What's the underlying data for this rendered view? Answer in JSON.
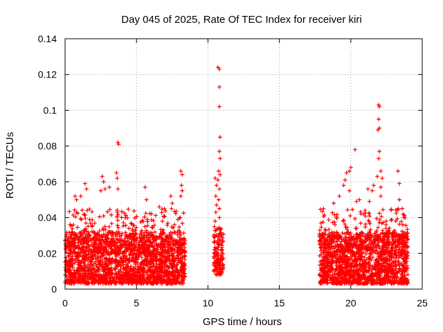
{
  "chart_data": {
    "type": "scatter",
    "title": "Day 045 of 2025, Rate Of TEC Index for receiver kiri",
    "xlabel": "GPS time / hours",
    "ylabel": "ROTI / TECUs",
    "xlim": [
      0,
      25
    ],
    "ylim": [
      0,
      0.14
    ],
    "x_ticks": [
      0,
      5,
      10,
      15,
      20,
      25
    ],
    "y_ticks": [
      0,
      0.02,
      0.04,
      0.06,
      0.08,
      0.1,
      0.12,
      0.14
    ],
    "x_tick_labels": [
      "0",
      "5",
      "10",
      "15",
      "20",
      "25"
    ],
    "y_tick_labels": [
      "0",
      "0.02",
      "0.04",
      "0.06",
      "0.08",
      "0.1",
      "0.12",
      "0.14"
    ],
    "grid": true,
    "marker": "+",
    "marker_color": "#ff0000",
    "series": [
      {
        "name": "ROTI",
        "clusters": [
          {
            "x_range": [
              0.0,
              8.4
            ],
            "y_range": [
              0.003,
              0.032
            ],
            "count": 1900
          },
          {
            "x_range": [
              0.3,
              8.4
            ],
            "y_range": [
              0.02,
              0.045
            ],
            "count": 260
          },
          {
            "x_range": [
              10.4,
              11.1
            ],
            "y_range": [
              0.008,
              0.035
            ],
            "count": 140
          },
          {
            "x_range": [
              17.8,
              24.0
            ],
            "y_range": [
              0.003,
              0.032
            ],
            "count": 1500
          },
          {
            "x_range": [
              17.8,
              24.0
            ],
            "y_range": [
              0.02,
              0.045
            ],
            "count": 200
          }
        ],
        "outliers": [
          {
            "x": 3.7,
            "y": 0.082
          },
          {
            "x": 3.75,
            "y": 0.081
          },
          {
            "x": 3.6,
            "y": 0.065
          },
          {
            "x": 3.65,
            "y": 0.062
          },
          {
            "x": 3.7,
            "y": 0.056
          },
          {
            "x": 2.6,
            "y": 0.063
          },
          {
            "x": 2.7,
            "y": 0.06
          },
          {
            "x": 2.8,
            "y": 0.056
          },
          {
            "x": 2.5,
            "y": 0.055
          },
          {
            "x": 1.4,
            "y": 0.059
          },
          {
            "x": 1.5,
            "y": 0.056
          },
          {
            "x": 0.7,
            "y": 0.052
          },
          {
            "x": 0.8,
            "y": 0.05
          },
          {
            "x": 1.1,
            "y": 0.052
          },
          {
            "x": 3.1,
            "y": 0.057
          },
          {
            "x": 5.6,
            "y": 0.057
          },
          {
            "x": 5.7,
            "y": 0.05
          },
          {
            "x": 7.4,
            "y": 0.052
          },
          {
            "x": 7.5,
            "y": 0.048
          },
          {
            "x": 6.6,
            "y": 0.046
          },
          {
            "x": 8.1,
            "y": 0.066
          },
          {
            "x": 8.2,
            "y": 0.064
          },
          {
            "x": 8.15,
            "y": 0.058
          },
          {
            "x": 8.2,
            "y": 0.055
          },
          {
            "x": 8.1,
            "y": 0.052
          },
          {
            "x": 10.7,
            "y": 0.124
          },
          {
            "x": 10.8,
            "y": 0.123
          },
          {
            "x": 10.8,
            "y": 0.113
          },
          {
            "x": 10.8,
            "y": 0.102
          },
          {
            "x": 10.85,
            "y": 0.085
          },
          {
            "x": 10.8,
            "y": 0.077
          },
          {
            "x": 10.85,
            "y": 0.073
          },
          {
            "x": 10.75,
            "y": 0.066
          },
          {
            "x": 10.85,
            "y": 0.064
          },
          {
            "x": 10.7,
            "y": 0.061
          },
          {
            "x": 10.5,
            "y": 0.062
          },
          {
            "x": 10.6,
            "y": 0.058
          },
          {
            "x": 10.8,
            "y": 0.056
          },
          {
            "x": 10.55,
            "y": 0.052
          },
          {
            "x": 10.75,
            "y": 0.05
          },
          {
            "x": 10.6,
            "y": 0.047
          },
          {
            "x": 10.8,
            "y": 0.045
          },
          {
            "x": 10.55,
            "y": 0.043
          },
          {
            "x": 10.8,
            "y": 0.04
          },
          {
            "x": 10.5,
            "y": 0.038
          },
          {
            "x": 20.0,
            "y": 0.068
          },
          {
            "x": 19.9,
            "y": 0.066
          },
          {
            "x": 19.7,
            "y": 0.065
          },
          {
            "x": 19.6,
            "y": 0.061
          },
          {
            "x": 19.5,
            "y": 0.058
          },
          {
            "x": 19.9,
            "y": 0.055
          },
          {
            "x": 19.2,
            "y": 0.052
          },
          {
            "x": 18.8,
            "y": 0.048
          },
          {
            "x": 20.3,
            "y": 0.078
          },
          {
            "x": 20.6,
            "y": 0.05
          },
          {
            "x": 20.4,
            "y": 0.049
          },
          {
            "x": 21.95,
            "y": 0.103
          },
          {
            "x": 22.0,
            "y": 0.102
          },
          {
            "x": 21.95,
            "y": 0.095
          },
          {
            "x": 22.0,
            "y": 0.09
          },
          {
            "x": 21.9,
            "y": 0.089
          },
          {
            "x": 22.0,
            "y": 0.077
          },
          {
            "x": 21.95,
            "y": 0.073
          },
          {
            "x": 22.1,
            "y": 0.066
          },
          {
            "x": 21.85,
            "y": 0.063
          },
          {
            "x": 22.2,
            "y": 0.062
          },
          {
            "x": 22.1,
            "y": 0.057
          },
          {
            "x": 21.6,
            "y": 0.058
          },
          {
            "x": 21.5,
            "y": 0.055
          },
          {
            "x": 22.1,
            "y": 0.052
          },
          {
            "x": 21.2,
            "y": 0.056
          },
          {
            "x": 21.3,
            "y": 0.049
          },
          {
            "x": 23.3,
            "y": 0.066
          },
          {
            "x": 23.4,
            "y": 0.059
          },
          {
            "x": 23.4,
            "y": 0.05
          },
          {
            "x": 23.6,
            "y": 0.045
          },
          {
            "x": 23.7,
            "y": 0.04
          },
          {
            "x": 0.0,
            "y": 0.027
          },
          {
            "x": 0.05,
            "y": 0.024
          }
        ]
      }
    ]
  }
}
